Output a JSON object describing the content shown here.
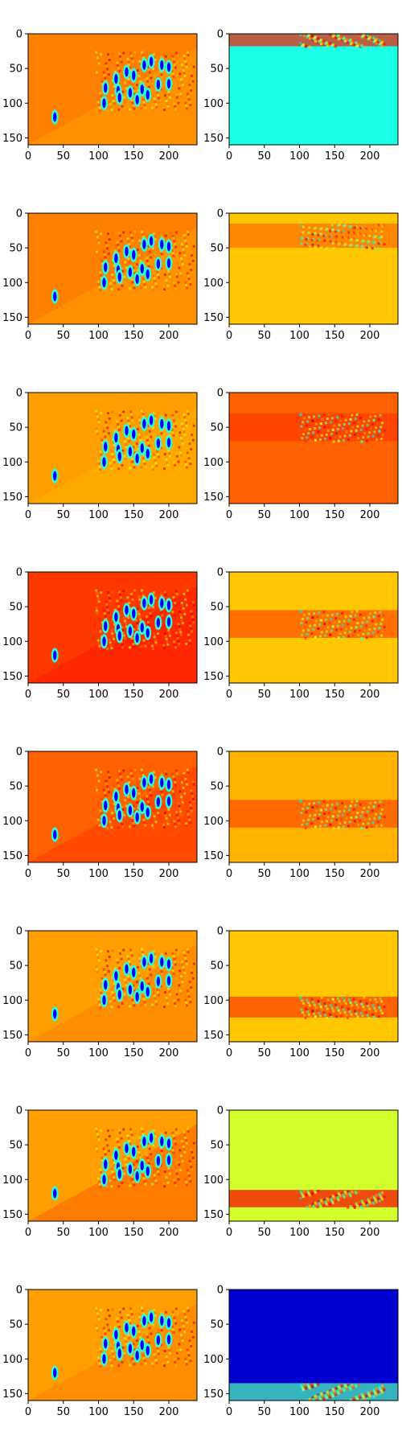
{
  "figure": {
    "rows": 8,
    "cols": 2,
    "colormap": "jet"
  },
  "chart_data": {
    "type": "heatmap",
    "layout": "8 rows x 2 columns grid of image panels",
    "colormap": "jet",
    "image_width": 240,
    "image_height": 160,
    "xlim": [
      0,
      240
    ],
    "ylim": [
      160,
      0
    ],
    "xticks": [
      0,
      50,
      100,
      150,
      200
    ],
    "yticks": [
      0,
      50,
      100,
      150
    ],
    "title": "",
    "xlabel": "",
    "ylabel": "",
    "panels": [
      {
        "row": 1,
        "col": 1,
        "background_level": 0.75,
        "band_y": [
          15,
          160
        ],
        "band_level": 0.72,
        "cluster": true
      },
      {
        "row": 1,
        "col": 2,
        "background_level": 0.4,
        "band_y": [
          0,
          18
        ],
        "band_level": 0.85,
        "cluster": false
      },
      {
        "row": 2,
        "col": 1,
        "background_level": 0.75,
        "band_y": [
          20,
          160
        ],
        "band_level": 0.72,
        "cluster": true
      },
      {
        "row": 2,
        "col": 2,
        "background_level": 0.68,
        "band_y": [
          15,
          50
        ],
        "band_level": 0.77,
        "cluster": false
      },
      {
        "row": 3,
        "col": 1,
        "background_level": 0.72,
        "band_y": [
          20,
          160
        ],
        "band_level": 0.7,
        "cluster": true
      },
      {
        "row": 3,
        "col": 2,
        "background_level": 0.78,
        "band_y": [
          30,
          70
        ],
        "band_level": 0.82,
        "cluster": false
      },
      {
        "row": 4,
        "col": 1,
        "background_level": 0.82,
        "band_y": [
          20,
          160
        ],
        "band_level": 0.85,
        "cluster": true
      },
      {
        "row": 4,
        "col": 2,
        "background_level": 0.68,
        "band_y": [
          55,
          95
        ],
        "band_level": 0.8,
        "cluster": false
      },
      {
        "row": 5,
        "col": 1,
        "background_level": 0.78,
        "band_y": [
          20,
          160
        ],
        "band_level": 0.82,
        "cluster": true
      },
      {
        "row": 5,
        "col": 2,
        "background_level": 0.7,
        "band_y": [
          70,
          110
        ],
        "band_level": 0.8,
        "cluster": false
      },
      {
        "row": 6,
        "col": 1,
        "background_level": 0.72,
        "band_y": [
          20,
          160
        ],
        "band_level": 0.75,
        "cluster": true
      },
      {
        "row": 6,
        "col": 2,
        "background_level": 0.68,
        "band_y": [
          95,
          125
        ],
        "band_level": 0.82,
        "cluster": false
      },
      {
        "row": 7,
        "col": 1,
        "background_level": 0.72,
        "band_y": [
          20,
          160
        ],
        "band_level": 0.78,
        "cluster": true
      },
      {
        "row": 7,
        "col": 2,
        "background_level": 0.58,
        "band_y": [
          115,
          140
        ],
        "band_level": 0.88,
        "cluster": false
      },
      {
        "row": 8,
        "col": 1,
        "background_level": 0.72,
        "band_y": [
          20,
          160
        ],
        "band_level": 0.75,
        "cluster": true
      },
      {
        "row": 8,
        "col": 2,
        "background_level": 0.08,
        "band_y": [
          135,
          160
        ],
        "band_level": 0.45,
        "cluster": false
      }
    ]
  }
}
